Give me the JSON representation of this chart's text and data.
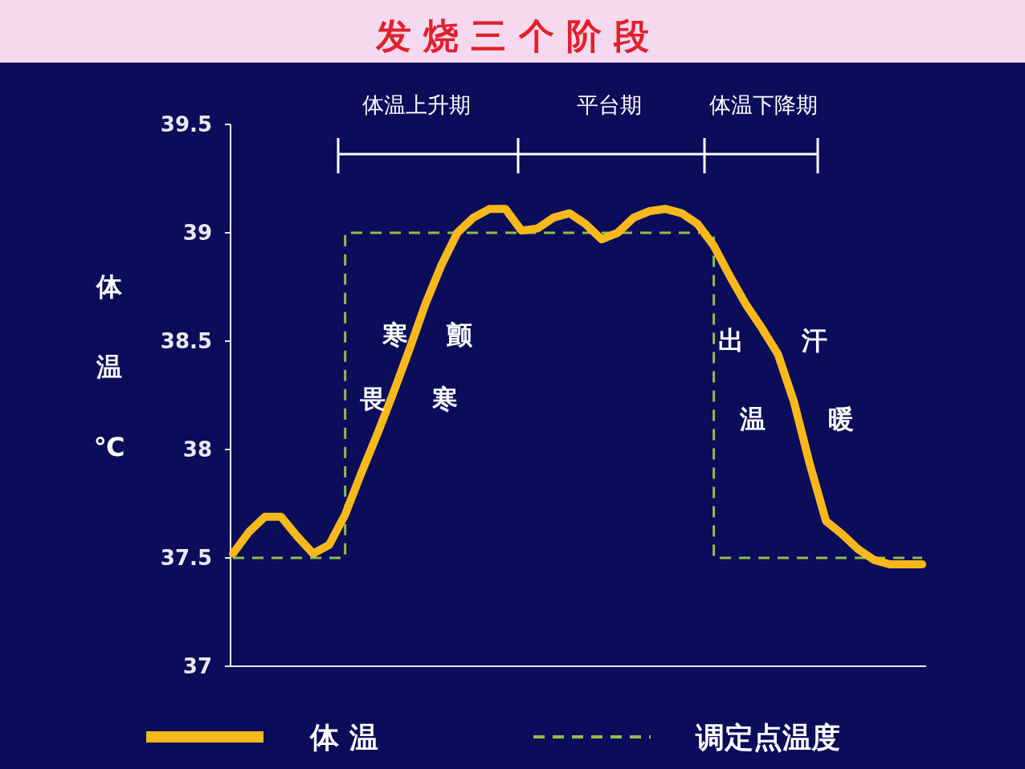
{
  "chart_data": {
    "type": "line",
    "title": "发 烧 三 个 阶 段",
    "ylabel": "体温℃",
    "categories": [
      null,
      null,
      null,
      null,
      null,
      null,
      null,
      null,
      null,
      null,
      null,
      null,
      null,
      null,
      null,
      null,
      null,
      null,
      null,
      null,
      null,
      null,
      null,
      null,
      null,
      null,
      null,
      null,
      null,
      null,
      null,
      null,
      null,
      null,
      null,
      null,
      null,
      null,
      null,
      null,
      null,
      null,
      null,
      null
    ],
    "series": [
      {
        "name": "体 温",
        "type": "line",
        "color": "#f7b81c",
        "line_style": "solid",
        "values": [
          37.52,
          37.62,
          37.69,
          37.69,
          37.6,
          37.52,
          37.56,
          37.7,
          37.89,
          38.07,
          38.26,
          38.46,
          38.67,
          38.85,
          39.0,
          39.07,
          39.11,
          39.11,
          39.01,
          39.02,
          39.07,
          39.09,
          39.04,
          38.97,
          39.0,
          39.07,
          39.1,
          39.11,
          39.09,
          39.04,
          38.94,
          38.8,
          38.67,
          38.56,
          38.44,
          38.22,
          37.93,
          37.67,
          37.61,
          37.54,
          37.49,
          37.47,
          37.47,
          37.47
        ]
      },
      {
        "name": "调定点温度",
        "type": "step",
        "color": "#8dc04a",
        "line_style": "dashed",
        "values": [
          37.5,
          37.5,
          37.5,
          37.5,
          37.5,
          37.5,
          37.5,
          39,
          39,
          39,
          39,
          39,
          39,
          39,
          39,
          39,
          39,
          39,
          39,
          39,
          39,
          39,
          39,
          39,
          39,
          39,
          39,
          39,
          39,
          39,
          37.5,
          37.5,
          37.5,
          37.5,
          37.5,
          37.5,
          37.5,
          37.5,
          37.5,
          37.5,
          37.5,
          37.5,
          37.5,
          37.5
        ]
      }
    ],
    "ylim": [
      37,
      39.5
    ],
    "yticks": [
      37,
      37.5,
      38,
      38.5,
      39,
      39.5
    ],
    "tick_labels": "y",
    "legend": "bottom",
    "annotations": [
      "体温上升期",
      "平台期",
      "体温下降期",
      "寒 颤",
      "畏 寒",
      "出 汗",
      "温 暖"
    ]
  }
}
